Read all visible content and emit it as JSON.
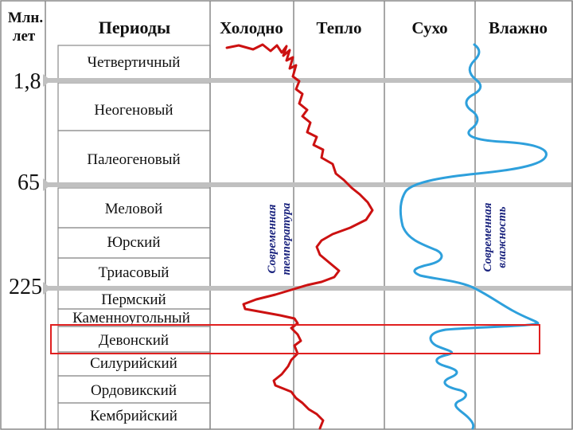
{
  "header": {
    "age_label_line1": "Млн.",
    "age_label_line2": "лет",
    "periods": "Периоды",
    "cold": "Холодно",
    "warm": "Тепло",
    "dry": "Сухо",
    "wet": "Влажно"
  },
  "ages": {
    "age_1": "1,8",
    "age_2": "65",
    "age_3": "225"
  },
  "periods": [
    "Четвертичный",
    "Неогеновый",
    "Палеогеновый",
    "Меловой",
    "Юрский",
    "Триасовый",
    "Пермский",
    "Каменноугольный",
    "Девонский",
    "Силурийский",
    "Ордовикский",
    "Кембрийский"
  ],
  "annotations": {
    "temperature_line1": "Современная",
    "temperature_line2": "температура",
    "humidity_line1": "Современная",
    "humidity_line2": "влажность"
  },
  "highlight": {
    "period": "Девонский"
  },
  "curves": {
    "temperature": {
      "color": "#cc1111",
      "axis": "Холодно → Тепло"
    },
    "humidity": {
      "color": "#2ea0dc",
      "axis": "Сухо → Влажно"
    }
  },
  "colors": {
    "divider": "#c0c0c0",
    "grid": "#8a8a8a",
    "highlight_box": "#e02020"
  }
}
